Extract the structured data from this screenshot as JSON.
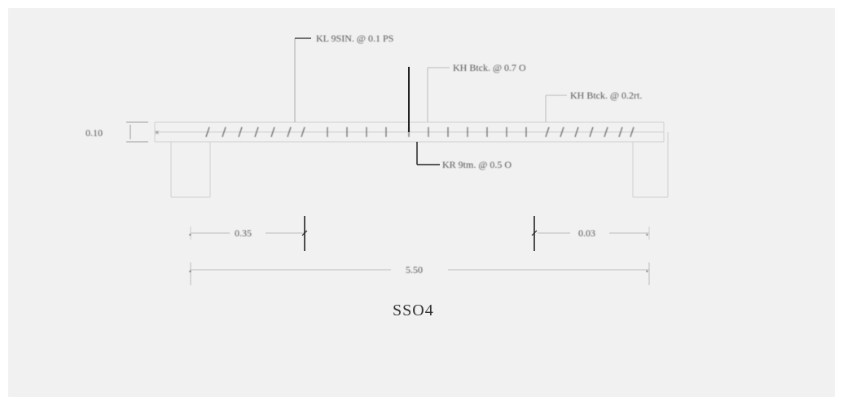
{
  "drawing": {
    "title": "SSO4",
    "callouts": {
      "top": "KL 9SIN. @ 0.1 PS",
      "mid": "KH Btck. @ 0.7 O",
      "right": "KH Btck. @ 0.2rt.",
      "below": "KR 9tm. @ 0.5 O"
    },
    "dimensions": {
      "thickness": "0.10",
      "left_span": "0.35",
      "right_span": "0.03",
      "overall": "5.50"
    },
    "colors": {
      "background": "#f1f1f1",
      "line_dark": "#222222",
      "line_light": "#c8c8c8",
      "text": "#555555"
    }
  }
}
